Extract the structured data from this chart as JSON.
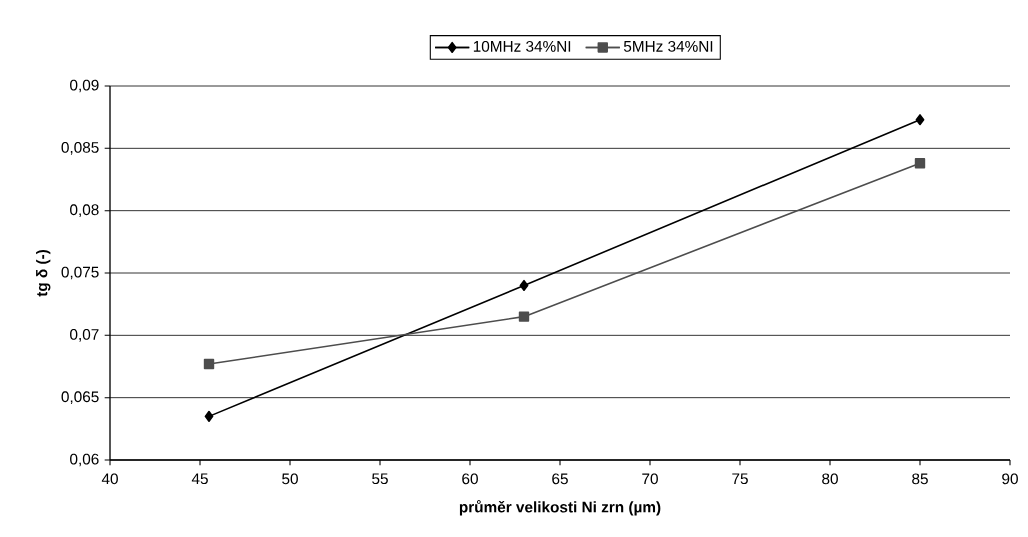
{
  "chart_data": {
    "type": "line",
    "xlabel": "průměr velikosti Ni zrn (µm)",
    "ylabel": "tg δ (-)",
    "series": [
      {
        "name": "10MHz 34%NI",
        "color": "#000000",
        "marker": "diamond",
        "x": [
          45.5,
          63,
          85
        ],
        "values": [
          0.0635,
          0.074,
          0.0873
        ]
      },
      {
        "name": "5MHz 34%NI",
        "color": "#4d4d4d",
        "marker": "square",
        "x": [
          45.5,
          63,
          85
        ],
        "values": [
          0.0677,
          0.0715,
          0.0838
        ]
      }
    ],
    "xlim": [
      40,
      90
    ],
    "xticks": [
      40,
      45,
      50,
      55,
      60,
      65,
      70,
      75,
      80,
      85,
      90
    ],
    "ylim": [
      0.06,
      0.09
    ],
    "yticks": [
      {
        "value": 0.06,
        "label": "0,06"
      },
      {
        "value": 0.065,
        "label": "0,065"
      },
      {
        "value": 0.07,
        "label": "0,07"
      },
      {
        "value": 0.075,
        "label": "0,075"
      },
      {
        "value": 0.08,
        "label": "0,08"
      },
      {
        "value": 0.085,
        "label": "0,085"
      },
      {
        "value": 0.09,
        "label": "0,09"
      }
    ],
    "grid": "y",
    "legend": "top",
    "line_style": "solid"
  }
}
